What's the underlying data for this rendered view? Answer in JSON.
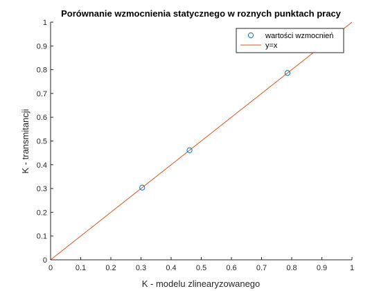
{
  "chart_data": {
    "type": "scatter",
    "title": "Porównanie wzmocnienia statycznego w roznych punktach pracy",
    "xlabel": "K - modelu zlinearyzowanego",
    "ylabel": "K - transmitancji",
    "xlim": [
      0,
      1
    ],
    "ylim": [
      0,
      1
    ],
    "xticks": [
      "0",
      "0.1",
      "0.2",
      "0.3",
      "0.4",
      "0.5",
      "0.6",
      "0.7",
      "0.8",
      "0.9",
      "1"
    ],
    "yticks": [
      "0",
      "0.1",
      "0.2",
      "0.3",
      "0.4",
      "0.5",
      "0.6",
      "0.7",
      "0.8",
      "0.9",
      "1"
    ],
    "grid": false,
    "legend_position": "top-right",
    "series": [
      {
        "name": "wartości wzmocnień",
        "type": "scatter",
        "marker": "circle",
        "color": "#0072BD",
        "x": [
          0.304,
          0.461,
          0.786
        ],
        "y": [
          0.304,
          0.461,
          0.786
        ]
      },
      {
        "name": "y=x",
        "type": "line",
        "color": "#D95319",
        "x": [
          0,
          1
        ],
        "y": [
          0,
          1
        ]
      }
    ]
  }
}
